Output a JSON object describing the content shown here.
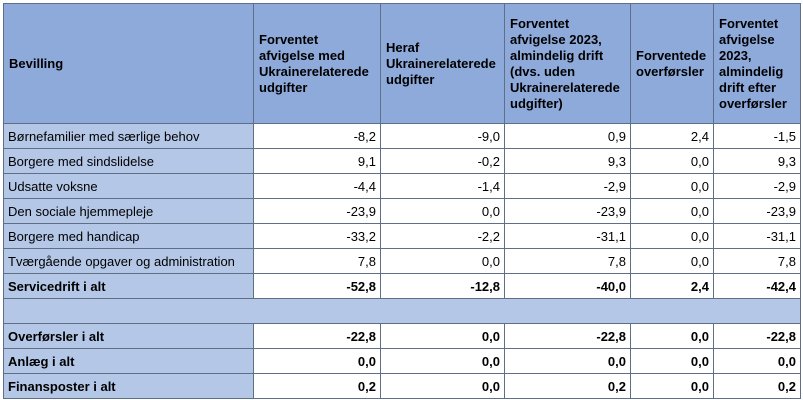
{
  "header": [
    "Bevilling",
    "Forventet afvigelse med Ukrainerelaterede udgifter",
    "Heraf Ukrainerelaterede udgifter",
    "Forventet afvigelse 2023, almindelig drift (dvs. uden Ukrainerelaterede udgifter)",
    "Forventede overførsler",
    "Forventet afvigelse 2023, almindelig drift efter overførsler"
  ],
  "rows": [
    {
      "label": "Børnefamilier med særlige behov",
      "v": [
        "-8,2",
        "-9,0",
        "0,9",
        "2,4",
        "-1,5"
      ]
    },
    {
      "label": "Borgere med sindslidelse",
      "v": [
        "9,1",
        "-0,2",
        "9,3",
        "0,0",
        "9,3"
      ]
    },
    {
      "label": "Udsatte voksne",
      "v": [
        "-4,4",
        "-1,4",
        "-2,9",
        "0,0",
        "-2,9"
      ]
    },
    {
      "label": "Den sociale hjemmepleje",
      "v": [
        "-23,9",
        "0,0",
        "-23,9",
        "0,0",
        "-23,9"
      ]
    },
    {
      "label": "Borgere med handicap",
      "v": [
        "-33,2",
        "-2,2",
        "-31,1",
        "0,0",
        "-31,1"
      ]
    },
    {
      "label": "Tværgående opgaver og administration",
      "v": [
        "7,8",
        "0,0",
        "7,8",
        "0,0",
        "7,8"
      ]
    }
  ],
  "servicedrift": {
    "label": "Servicedrift i alt",
    "v": [
      "-52,8",
      "-12,8",
      "-40,0",
      "2,4",
      "-42,4"
    ]
  },
  "totals": [
    {
      "label": "Overførsler i alt",
      "v": [
        "-22,8",
        "0,0",
        "-22,8",
        "0,0",
        "-22,8"
      ]
    },
    {
      "label": "Anlæg i alt",
      "v": [
        "0,0",
        "0,0",
        "0,0",
        "0,0",
        "0,0"
      ]
    },
    {
      "label": "Finansposter i alt",
      "v": [
        "0,2",
        "0,0",
        "0,2",
        "0,0",
        "0,2"
      ]
    }
  ],
  "colors": {
    "header": "#8eaadb",
    "label_cell": "#b4c7e7",
    "value_cell": "#ffffff",
    "border": "#5f6f86"
  }
}
